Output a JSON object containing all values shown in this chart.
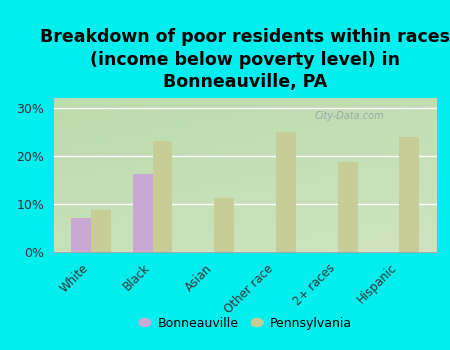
{
  "title": "Breakdown of poor residents within races\n(income below poverty level) in\nBonneauville, PA",
  "categories": [
    "White",
    "Black",
    "Asian",
    "Other race",
    "2+ races",
    "Hispanic"
  ],
  "bonneauville_values": [
    7.0,
    16.3,
    0,
    0,
    0,
    0
  ],
  "pennsylvania_values": [
    8.8,
    23.0,
    11.2,
    25.0,
    18.7,
    23.8
  ],
  "bonneauville_color": "#c9a8d4",
  "pennsylvania_color": "#c8cc96",
  "background_color": "#00eeee",
  "plot_bg_color": "#e8f0d8",
  "yticks": [
    0,
    10,
    20,
    30
  ],
  "ylim": [
    0,
    32
  ],
  "bar_width": 0.32,
  "title_fontsize": 12.5,
  "legend_labels": [
    "Bonneauville",
    "Pennsylvania"
  ],
  "watermark": "City-Data.com"
}
